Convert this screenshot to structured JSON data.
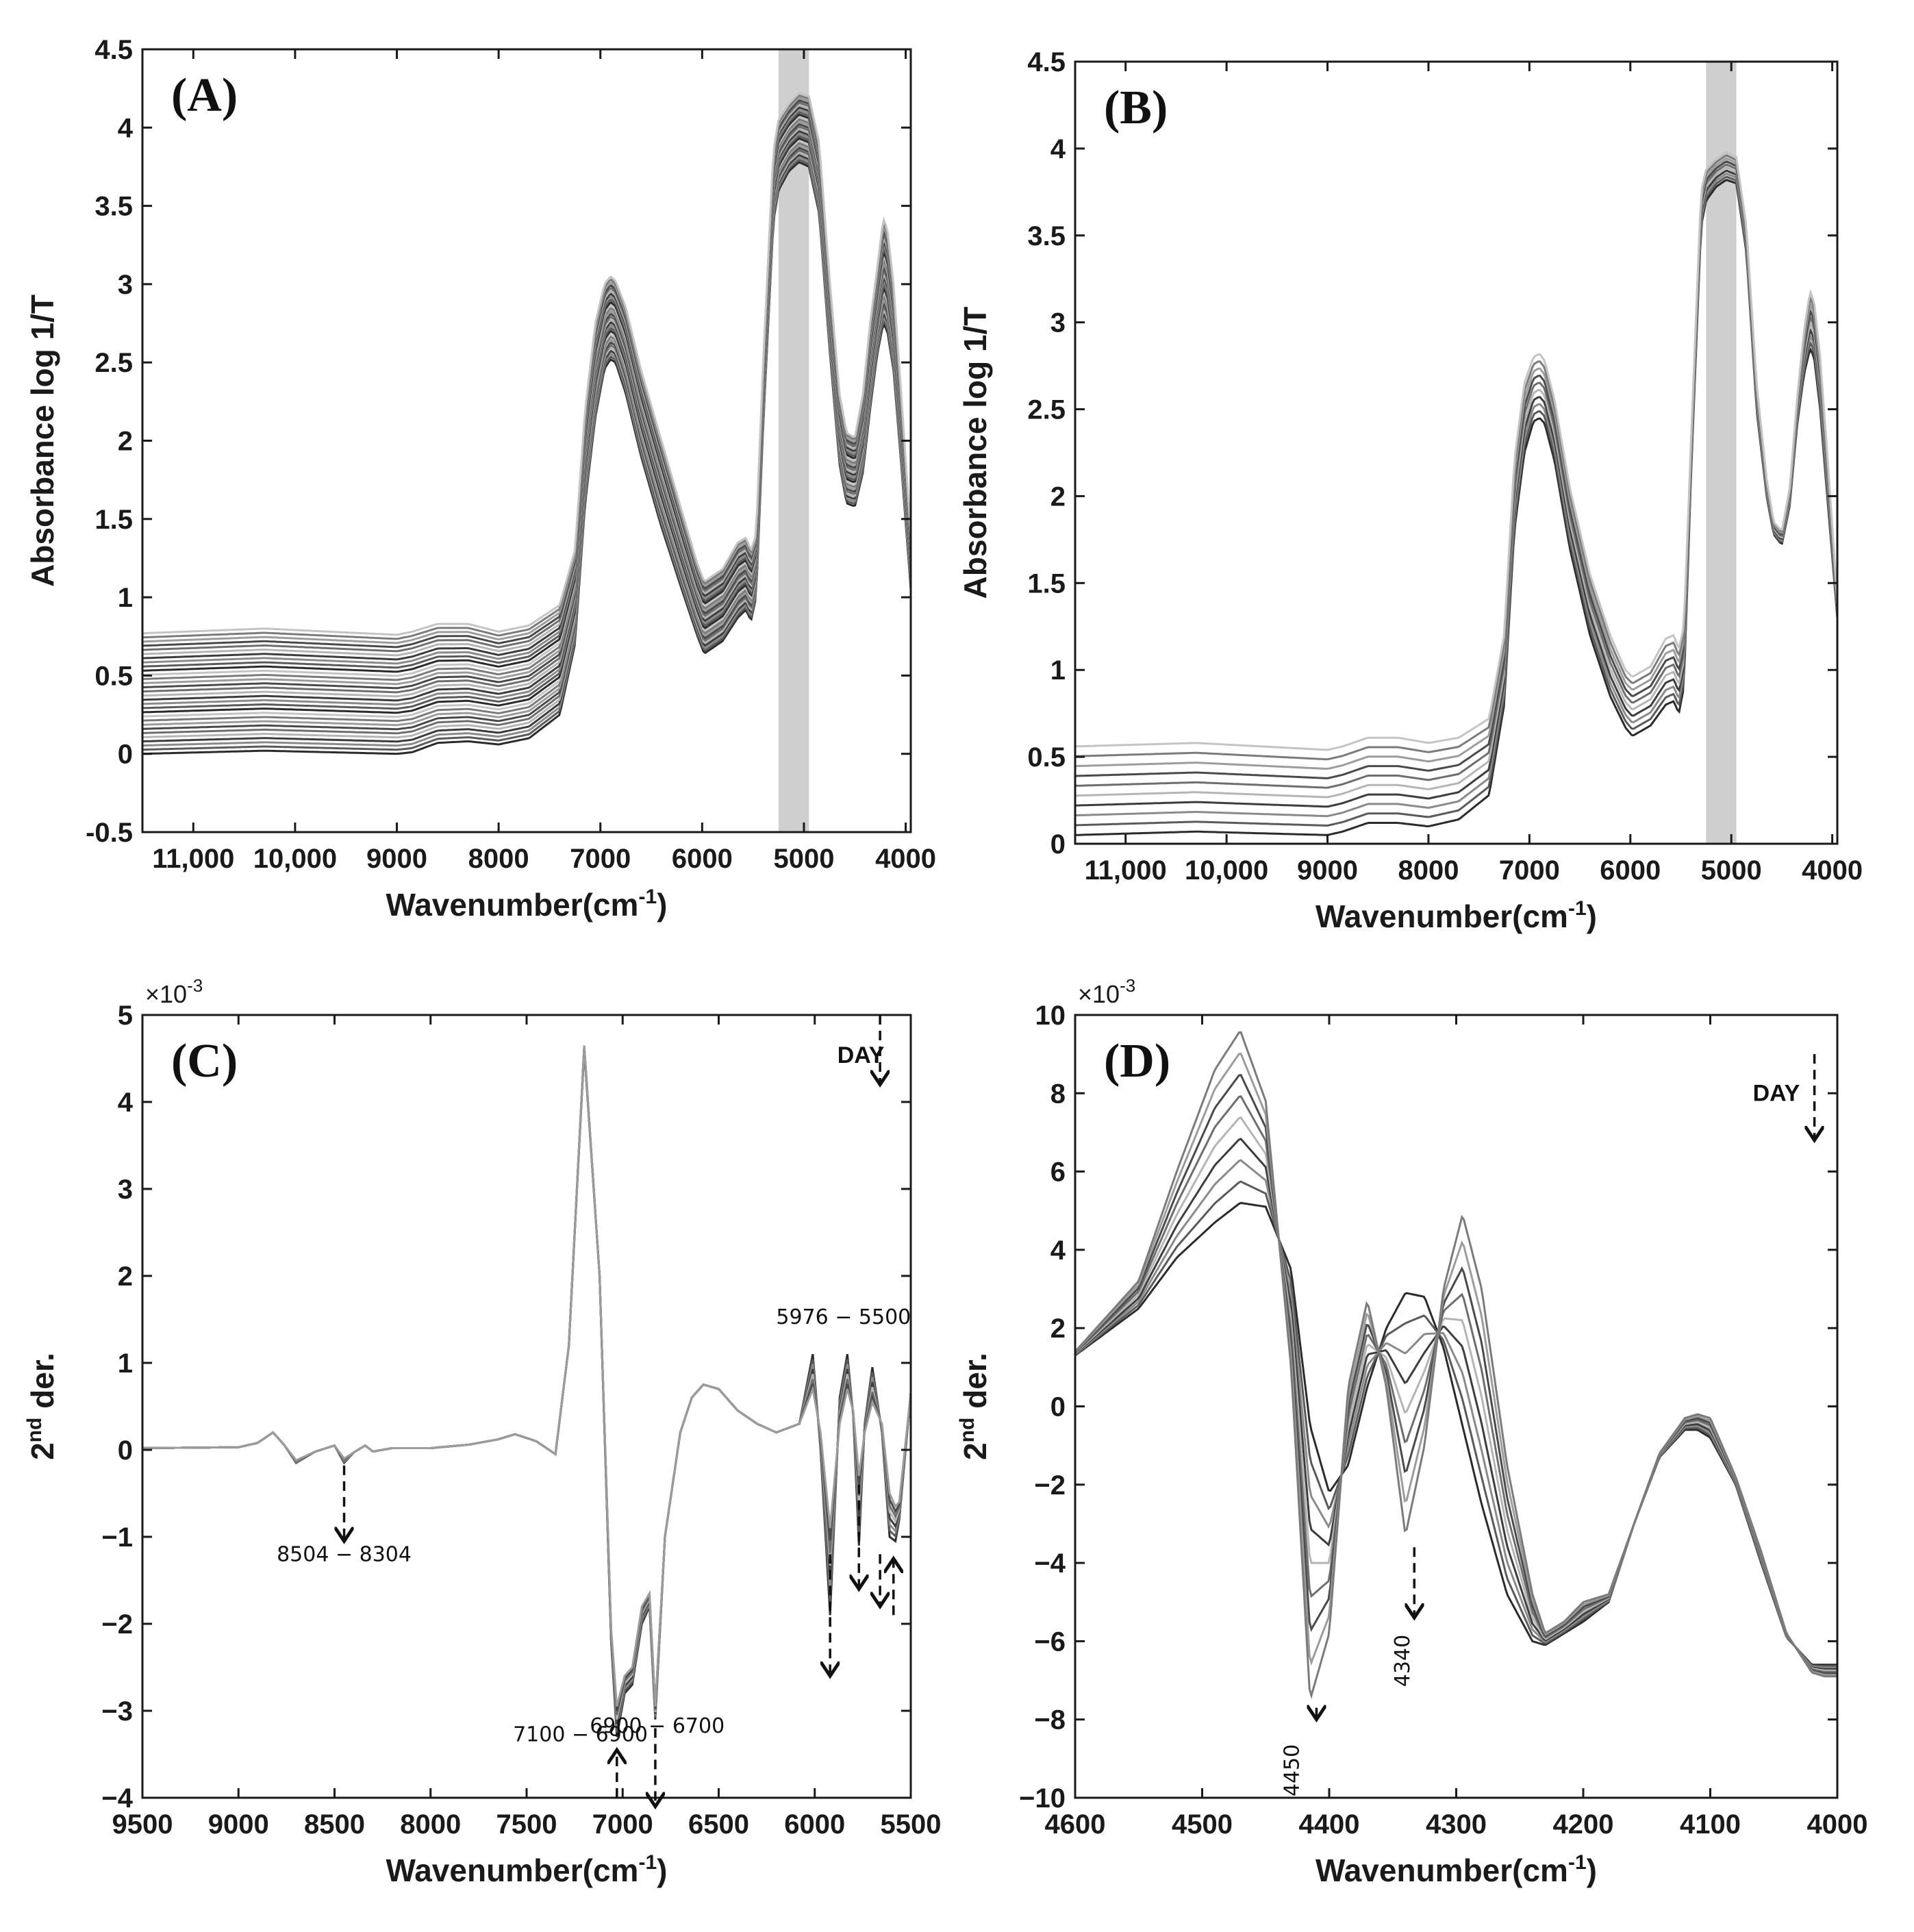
{
  "chart_data": [
    {
      "id": "A",
      "type": "line",
      "panel_label": "(A)",
      "xlabel": "Wavenumber(cm",
      "xlabel_sup": "-1",
      "xlabel_end": ")",
      "ylabel": "Absorbance log 1/T",
      "xlim": [
        11500,
        3950
      ],
      "ylim": [
        -0.5,
        4.5
      ],
      "x_reversed": true,
      "xticks": [
        11000,
        10000,
        9000,
        8000,
        7000,
        6000,
        5000,
        4000
      ],
      "xtick_labels": [
        "11,000",
        "10,000",
        "9000",
        "8000",
        "7000",
        "6000",
        "5000",
        "4000"
      ],
      "yticks": [
        -0.5,
        0,
        0.5,
        1,
        1.5,
        2,
        2.5,
        3,
        3.5,
        4,
        4.5
      ],
      "ytick_labels": [
        "-0.5",
        "0",
        "0.5",
        "1",
        "1.5",
        "2",
        "2.5",
        "3",
        "3.5",
        "4",
        "4.5"
      ],
      "shaded_band": [
        5250,
        4950
      ],
      "series_count": 30,
      "profile_x": [
        11500,
        10300,
        9000,
        8850,
        8600,
        8300,
        8000,
        7700,
        7400,
        7250,
        7150,
        7050,
        6960,
        6900,
        6850,
        6750,
        6600,
        6400,
        6200,
        6050,
        5980,
        5800,
        5650,
        5570,
        5520,
        5470,
        5400,
        5300,
        5250,
        5150,
        5050,
        4950,
        4850,
        4750,
        4650,
        4580,
        4500,
        4420,
        4350,
        4280,
        4220,
        4180,
        4120,
        4050,
        3950
      ],
      "profile_base": [
        0.0,
        0.02,
        0.0,
        0.01,
        0.07,
        0.08,
        0.06,
        0.1,
        0.25,
        0.7,
        1.6,
        2.15,
        2.46,
        2.52,
        2.5,
        2.3,
        1.9,
        1.45,
        1.05,
        0.76,
        0.64,
        0.72,
        0.87,
        0.92,
        0.85,
        1.0,
        2.1,
        3.4,
        3.6,
        3.72,
        3.78,
        3.75,
        3.45,
        2.6,
        1.85,
        1.6,
        1.58,
        1.8,
        2.2,
        2.55,
        2.75,
        2.7,
        2.45,
        1.9,
        1.05
      ],
      "profile_top": [
        0.77,
        0.8,
        0.76,
        0.78,
        0.83,
        0.83,
        0.78,
        0.82,
        0.95,
        1.3,
        2.2,
        2.75,
        3.0,
        3.05,
        3.02,
        2.85,
        2.45,
        2.0,
        1.55,
        1.22,
        1.1,
        1.18,
        1.35,
        1.38,
        1.3,
        1.4,
        2.5,
        3.85,
        4.05,
        4.15,
        4.22,
        4.2,
        3.9,
        3.05,
        2.3,
        2.05,
        2.02,
        2.3,
        2.75,
        3.1,
        3.42,
        3.35,
        3.0,
        2.35,
        1.4
      ]
    },
    {
      "id": "B",
      "type": "line",
      "panel_label": "(B)",
      "xlabel": "Wavenumber(cm",
      "xlabel_sup": "-1",
      "xlabel_end": ")",
      "ylabel": "Absorbance log 1/T",
      "xlim": [
        11500,
        3950
      ],
      "ylim": [
        0,
        4.5
      ],
      "x_reversed": true,
      "xticks": [
        11000,
        10000,
        9000,
        8000,
        7000,
        6000,
        5000,
        4000
      ],
      "xtick_labels": [
        "11,000",
        "10,000",
        "9000",
        "8000",
        "7000",
        "6000",
        "5000",
        "4000"
      ],
      "yticks": [
        0,
        0.5,
        1,
        1.5,
        2,
        2.5,
        3,
        3.5,
        4,
        4.5
      ],
      "ytick_labels": [
        "0",
        "0.5",
        "1",
        "1.5",
        "2",
        "2.5",
        "3",
        "3.5",
        "4",
        "4.5"
      ],
      "shaded_band": [
        5250,
        4950
      ],
      "series_count": 10,
      "profile_x": [
        11500,
        10300,
        9000,
        8850,
        8600,
        8300,
        8000,
        7700,
        7400,
        7250,
        7150,
        7050,
        6960,
        6900,
        6850,
        6750,
        6600,
        6400,
        6200,
        6050,
        5980,
        5800,
        5650,
        5570,
        5520,
        5470,
        5400,
        5300,
        5250,
        5150,
        5050,
        4950,
        4850,
        4750,
        4650,
        4580,
        4500,
        4420,
        4350,
        4280,
        4220,
        4180,
        4120,
        4050,
        3950
      ],
      "profile_base": [
        0.05,
        0.07,
        0.05,
        0.07,
        0.12,
        0.12,
        0.1,
        0.14,
        0.28,
        0.8,
        1.8,
        2.25,
        2.43,
        2.45,
        2.42,
        2.2,
        1.7,
        1.2,
        0.85,
        0.67,
        0.62,
        0.68,
        0.8,
        0.82,
        0.75,
        0.9,
        2.1,
        3.55,
        3.7,
        3.78,
        3.82,
        3.8,
        3.4,
        2.5,
        2.0,
        1.78,
        1.72,
        1.95,
        2.4,
        2.7,
        2.85,
        2.8,
        2.5,
        2.0,
        1.3
      ],
      "profile_top": [
        0.56,
        0.58,
        0.54,
        0.56,
        0.61,
        0.61,
        0.58,
        0.61,
        0.72,
        1.2,
        2.2,
        2.65,
        2.8,
        2.82,
        2.78,
        2.55,
        2.05,
        1.55,
        1.2,
        1.0,
        0.96,
        1.02,
        1.18,
        1.2,
        1.12,
        1.25,
        2.3,
        3.75,
        3.88,
        3.94,
        3.98,
        3.95,
        3.55,
        2.65,
        2.1,
        1.85,
        1.8,
        2.05,
        2.55,
        2.95,
        3.18,
        3.12,
        2.8,
        2.25,
        1.4
      ]
    },
    {
      "id": "C",
      "type": "line",
      "panel_label": "(C)",
      "xlabel": "Wavenumber(cm",
      "xlabel_sup": "-1",
      "xlabel_end": ")",
      "ylabel": "der.",
      "ylabel_prefix": "2",
      "ylabel_sup": "nd",
      "y_multiplier": "×10",
      "y_multiplier_exp": "-3",
      "xlim": [
        9500,
        5500
      ],
      "ylim": [
        -4,
        5
      ],
      "x_reversed": true,
      "xticks": [
        9500,
        9000,
        8500,
        8000,
        7500,
        7000,
        6500,
        6000,
        5500
      ],
      "xtick_labels": [
        "9500",
        "9000",
        "8500",
        "8000",
        "7500",
        "7000",
        "6500",
        "6000",
        "5500"
      ],
      "yticks": [
        -4,
        -3,
        -2,
        -1,
        0,
        1,
        2,
        3,
        4,
        5
      ],
      "ytick_labels": [
        "−4",
        "−3",
        "−2",
        "−1",
        "0",
        "1",
        "2",
        "3",
        "4",
        "5"
      ],
      "series_count": 8,
      "profile_x": [
        9500,
        9000,
        8900,
        8820,
        8760,
        8700,
        8600,
        8500,
        8450,
        8400,
        8340,
        8300,
        8200,
        8000,
        7800,
        7650,
        7560,
        7450,
        7350,
        7280,
        7200,
        7120,
        7060,
        7030,
        6990,
        6950,
        6900,
        6860,
        6830,
        6780,
        6700,
        6640,
        6580,
        6500,
        6400,
        6300,
        6200,
        6080,
        6010,
        5970,
        5920,
        5870,
        5830,
        5800,
        5770,
        5740,
        5700,
        5650,
        5610,
        5580,
        5560,
        5500
      ],
      "profile_base": [
        0.02,
        0.03,
        0.08,
        0.2,
        0.05,
        -0.15,
        -0.02,
        0.05,
        -0.15,
        -0.03,
        0.05,
        -0.02,
        0.02,
        0.02,
        0.06,
        0.12,
        0.18,
        0.1,
        -0.05,
        1.2,
        4.6,
        2.0,
        -2.2,
        -3.3,
        -2.8,
        -2.7,
        -2.0,
        -1.8,
        -3.1,
        -1.0,
        0.2,
        0.6,
        0.75,
        0.7,
        0.45,
        0.3,
        0.2,
        0.3,
        1.1,
        0.0,
        -1.9,
        0.6,
        1.1,
        0.4,
        -1.1,
        0.3,
        0.95,
        0.2,
        -1.0,
        -1.05,
        -0.8,
        0.65
      ],
      "profile_top": [
        0.02,
        0.03,
        0.08,
        0.2,
        0.05,
        -0.12,
        -0.02,
        0.05,
        -0.1,
        -0.03,
        0.05,
        -0.02,
        0.02,
        0.02,
        0.06,
        0.12,
        0.18,
        0.1,
        -0.05,
        1.2,
        4.65,
        2.0,
        -2.05,
        -2.95,
        -2.6,
        -2.5,
        -1.8,
        -1.65,
        -2.95,
        -1.0,
        0.2,
        0.6,
        0.75,
        0.7,
        0.45,
        0.3,
        0.2,
        0.3,
        0.7,
        0.2,
        -0.9,
        0.3,
        0.7,
        0.45,
        -0.3,
        0.2,
        0.55,
        0.3,
        -0.5,
        -0.65,
        -0.6,
        0.65
      ],
      "annotations": [
        {
          "text": "8504 − 8304",
          "x": 8450,
          "y": -1.28
        },
        {
          "text": "7100 − 6900",
          "x": 7220,
          "y": -3.35
        },
        {
          "text": "6900 − 6700",
          "x": 6820,
          "y": -3.25
        },
        {
          "text": "5976 − 5500",
          "x": 5850,
          "y": 1.45
        }
      ],
      "arrows": [
        {
          "x": 8450,
          "y1": -0.18,
          "y2": -1.05
        },
        {
          "x": 7030,
          "y1": -4.0,
          "y2": -3.45
        },
        {
          "x": 6830,
          "y1": -3.2,
          "y2": -4.1
        },
        {
          "x": 5920,
          "y1": -1.2,
          "y2": -2.6
        },
        {
          "x": 5770,
          "y1": -0.4,
          "y2": -1.6
        },
        {
          "x": 5660,
          "y1": -1.2,
          "y2": -1.8
        },
        {
          "x": 5590,
          "y1": -1.9,
          "y2": -1.25
        }
      ],
      "day_arrow": {
        "label": "DAY",
        "x": 5660,
        "y1": 5.0,
        "y2": 4.2,
        "label_x": 5760,
        "label_y": 4.45
      }
    },
    {
      "id": "D",
      "type": "line",
      "panel_label": "(D)",
      "xlabel": "Wavenumber(cm",
      "xlabel_sup": "-1",
      "xlabel_end": ")",
      "ylabel": "der.",
      "ylabel_prefix": "2",
      "ylabel_sup": "nd",
      "y_multiplier": "×10",
      "y_multiplier_exp": "-3",
      "xlim": [
        4600,
        4000
      ],
      "ylim": [
        -10,
        10
      ],
      "x_reversed": true,
      "xticks": [
        4600,
        4500,
        4400,
        4300,
        4200,
        4100,
        4000
      ],
      "xtick_labels": [
        "4600",
        "4500",
        "4400",
        "4300",
        "4200",
        "4100",
        "4000"
      ],
      "yticks": [
        -10,
        -8,
        -6,
        -4,
        -2,
        0,
        2,
        4,
        6,
        8,
        10
      ],
      "ytick_labels": [
        "−10",
        "−8",
        "−6",
        "−4",
        "−2",
        "0",
        "2",
        "4",
        "6",
        "8",
        "10"
      ],
      "series_count": 9,
      "profile_x": [
        4600,
        4550,
        4520,
        4490,
        4470,
        4450,
        4430,
        4415,
        4400,
        4385,
        4370,
        4355,
        4340,
        4325,
        4310,
        4295,
        4280,
        4260,
        4240,
        4230,
        4215,
        4200,
        4180,
        4160,
        4140,
        4120,
        4110,
        4100,
        4080,
        4060,
        4040,
        4020,
        4010
      ],
      "profile_base": [
        1.3,
        2.5,
        3.8,
        4.7,
        5.2,
        5.1,
        3.5,
        -0.5,
        -2.2,
        -1.5,
        0.5,
        2.0,
        2.9,
        2.8,
        1.5,
        -0.5,
        -2.5,
        -4.8,
        -6.0,
        -6.1,
        -5.8,
        -5.5,
        -5.0,
        -3.0,
        -1.3,
        -0.6,
        -0.6,
        -0.8,
        -2.0,
        -4.0,
        -5.9,
        -6.6,
        -6.6
      ],
      "profile_top": [
        1.4,
        3.2,
        6.0,
        8.6,
        9.6,
        7.8,
        1.0,
        -7.5,
        -5.8,
        0.5,
        2.7,
        0.5,
        -3.3,
        -1.0,
        3.0,
        4.9,
        3.0,
        -1.5,
        -4.8,
        -5.8,
        -5.5,
        -5.0,
        -4.8,
        -3.0,
        -1.2,
        -0.3,
        -0.2,
        -0.3,
        -1.8,
        -3.7,
        -5.8,
        -6.8,
        -6.9
      ],
      "annotations": [
        {
          "text": "4450",
          "x": 4424,
          "y": -9.3
        },
        {
          "text": "4340",
          "x": 4337,
          "y": -6.5
        }
      ],
      "arrows": [
        {
          "x": 4410,
          "y1": -7.7,
          "y2": -8.0
        },
        {
          "x": 4333,
          "y1": -3.6,
          "y2": -5.4
        }
      ],
      "day_arrow": {
        "label": "DAY",
        "x": 4018,
        "y1": 9.0,
        "y2": 6.8,
        "label_x": 4048,
        "label_y": 7.8
      }
    }
  ]
}
